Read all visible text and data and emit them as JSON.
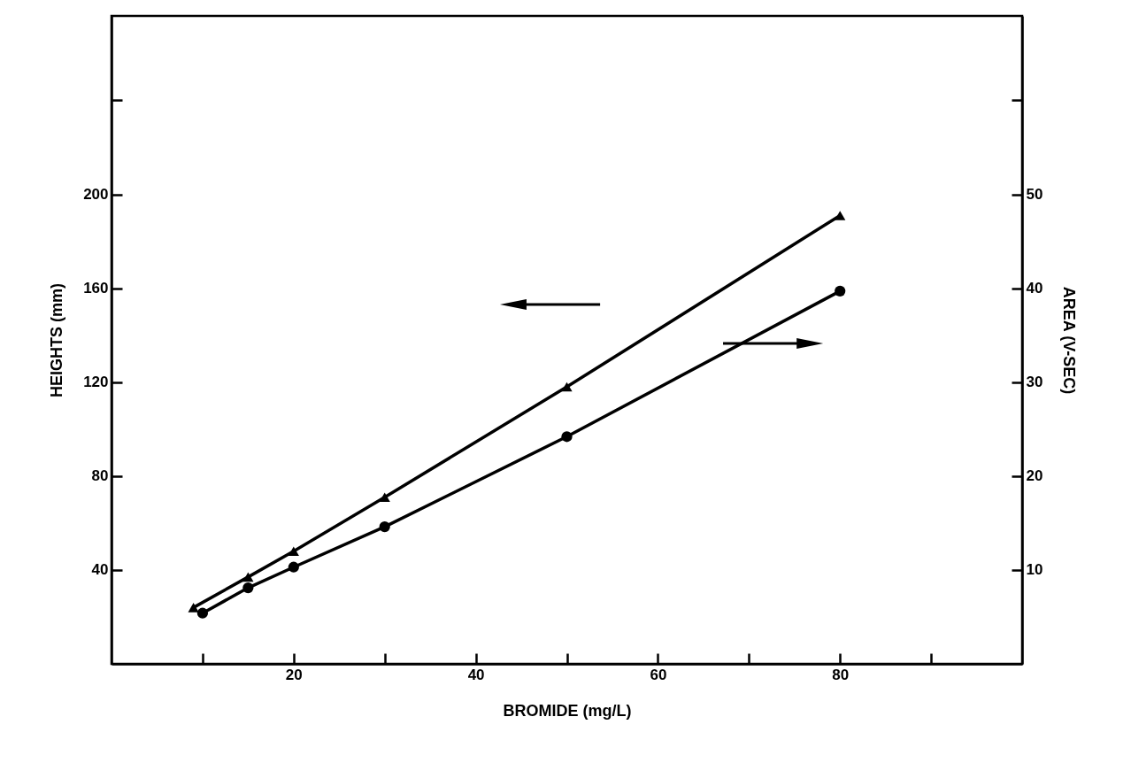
{
  "chart_data": {
    "type": "line",
    "xlabel": "BROMIDE (mg/L)",
    "ylabel": "HEIGHTS (mm)",
    "y2label": "AREA (V-SEC)",
    "xlim": [
      0,
      100
    ],
    "xticks": [
      {
        "value": 10,
        "label": null
      },
      20,
      {
        "value": 30,
        "label": null
      },
      40,
      {
        "value": 50,
        "label": null
      },
      60,
      {
        "value": 70,
        "label": null
      },
      80,
      {
        "value": 90,
        "label": null
      }
    ],
    "ylim": [
      0,
      276
    ],
    "yticks": [
      40,
      80,
      120,
      160,
      200,
      {
        "value": 240,
        "label": null
      }
    ],
    "y2lim": [
      0,
      69
    ],
    "y2ticks": [
      10,
      20,
      30,
      40,
      50,
      {
        "value": 60,
        "label": null
      }
    ],
    "series": [
      {
        "color": "#000000",
        "marker": "triangle",
        "x": [
          9,
          15,
          20,
          30,
          50,
          80
        ],
        "values": [
          24,
          37,
          48,
          71,
          118,
          191
        ]
      },
      {
        "color": "#000000",
        "marker": "circle",
        "axis": "y2",
        "x": [
          10,
          15,
          20,
          30,
          50,
          80
        ],
        "values": [
          5.4,
          8.1,
          10.3,
          14.6,
          24.2,
          39.7
        ]
      }
    ],
    "line_style": "solid",
    "grid": false
  }
}
